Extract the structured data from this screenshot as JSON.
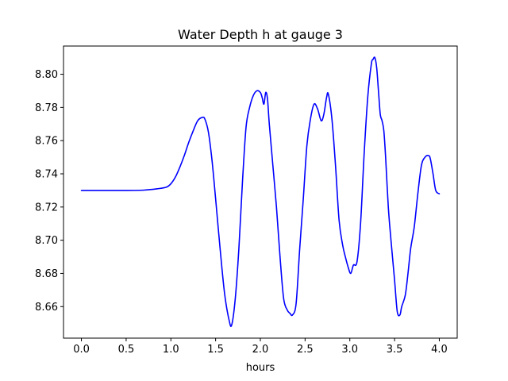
{
  "chart_data": {
    "type": "line",
    "title": "Water Depth h at gauge 3",
    "xlabel": "hours",
    "ylabel": "",
    "xlim": [
      -0.2,
      4.2
    ],
    "ylim": [
      8.641,
      8.817
    ],
    "grid": false,
    "x_ticks": [
      0.0,
      0.5,
      1.0,
      1.5,
      2.0,
      2.5,
      3.0,
      3.5,
      4.0
    ],
    "x_tick_labels": [
      "0.0",
      "0.5",
      "1.0",
      "1.5",
      "2.0",
      "2.5",
      "3.0",
      "3.5",
      "4.0"
    ],
    "y_ticks": [
      8.66,
      8.68,
      8.7,
      8.72,
      8.74,
      8.76,
      8.78,
      8.8
    ],
    "y_tick_labels": [
      "8.66",
      "8.68",
      "8.70",
      "8.72",
      "8.74",
      "8.76",
      "8.78",
      "8.80"
    ],
    "series": [
      {
        "color": "#0000ff",
        "x": [
          0.0,
          0.5,
          0.7,
          0.85,
          0.95,
          1.0,
          1.05,
          1.1,
          1.15,
          1.2,
          1.25,
          1.3,
          1.35,
          1.38,
          1.42,
          1.46,
          1.5,
          1.55,
          1.6,
          1.65,
          1.68,
          1.72,
          1.76,
          1.8,
          1.84,
          1.88,
          1.92,
          1.96,
          2.0,
          2.02,
          2.04,
          2.06,
          2.08,
          2.1,
          2.14,
          2.18,
          2.22,
          2.26,
          2.3,
          2.33,
          2.36,
          2.4,
          2.44,
          2.48,
          2.52,
          2.56,
          2.6,
          2.64,
          2.68,
          2.71,
          2.74,
          2.76,
          2.8,
          2.84,
          2.88,
          2.92,
          2.95,
          2.98,
          3.01,
          3.04,
          3.08,
          3.12,
          3.16,
          3.2,
          3.24,
          3.26,
          3.28,
          3.3,
          3.32,
          3.34,
          3.36,
          3.38,
          3.4,
          3.43,
          3.46,
          3.5,
          3.53,
          3.56,
          3.58,
          3.62,
          3.65,
          3.68,
          3.72,
          3.76,
          3.8,
          3.84,
          3.88,
          3.9,
          3.93,
          3.96,
          4.0
        ],
        "y": [
          8.73,
          8.73,
          8.7302,
          8.731,
          8.732,
          8.734,
          8.738,
          8.744,
          8.751,
          8.759,
          8.766,
          8.772,
          8.774,
          8.773,
          8.765,
          8.748,
          8.725,
          8.695,
          8.668,
          8.652,
          8.649,
          8.665,
          8.695,
          8.735,
          8.768,
          8.78,
          8.787,
          8.79,
          8.789,
          8.786,
          8.782,
          8.789,
          8.785,
          8.77,
          8.745,
          8.72,
          8.69,
          8.665,
          8.658,
          8.656,
          8.655,
          8.662,
          8.695,
          8.725,
          8.757,
          8.773,
          8.782,
          8.779,
          8.772,
          8.776,
          8.786,
          8.788,
          8.773,
          8.745,
          8.712,
          8.697,
          8.69,
          8.684,
          8.68,
          8.685,
          8.687,
          8.71,
          8.752,
          8.786,
          8.806,
          8.809,
          8.81,
          8.804,
          8.79,
          8.776,
          8.772,
          8.766,
          8.75,
          8.72,
          8.7,
          8.676,
          8.657,
          8.655,
          8.66,
          8.667,
          8.68,
          8.695,
          8.708,
          8.728,
          8.745,
          8.75,
          8.751,
          8.749,
          8.74,
          8.73,
          8.728
        ]
      }
    ]
  }
}
